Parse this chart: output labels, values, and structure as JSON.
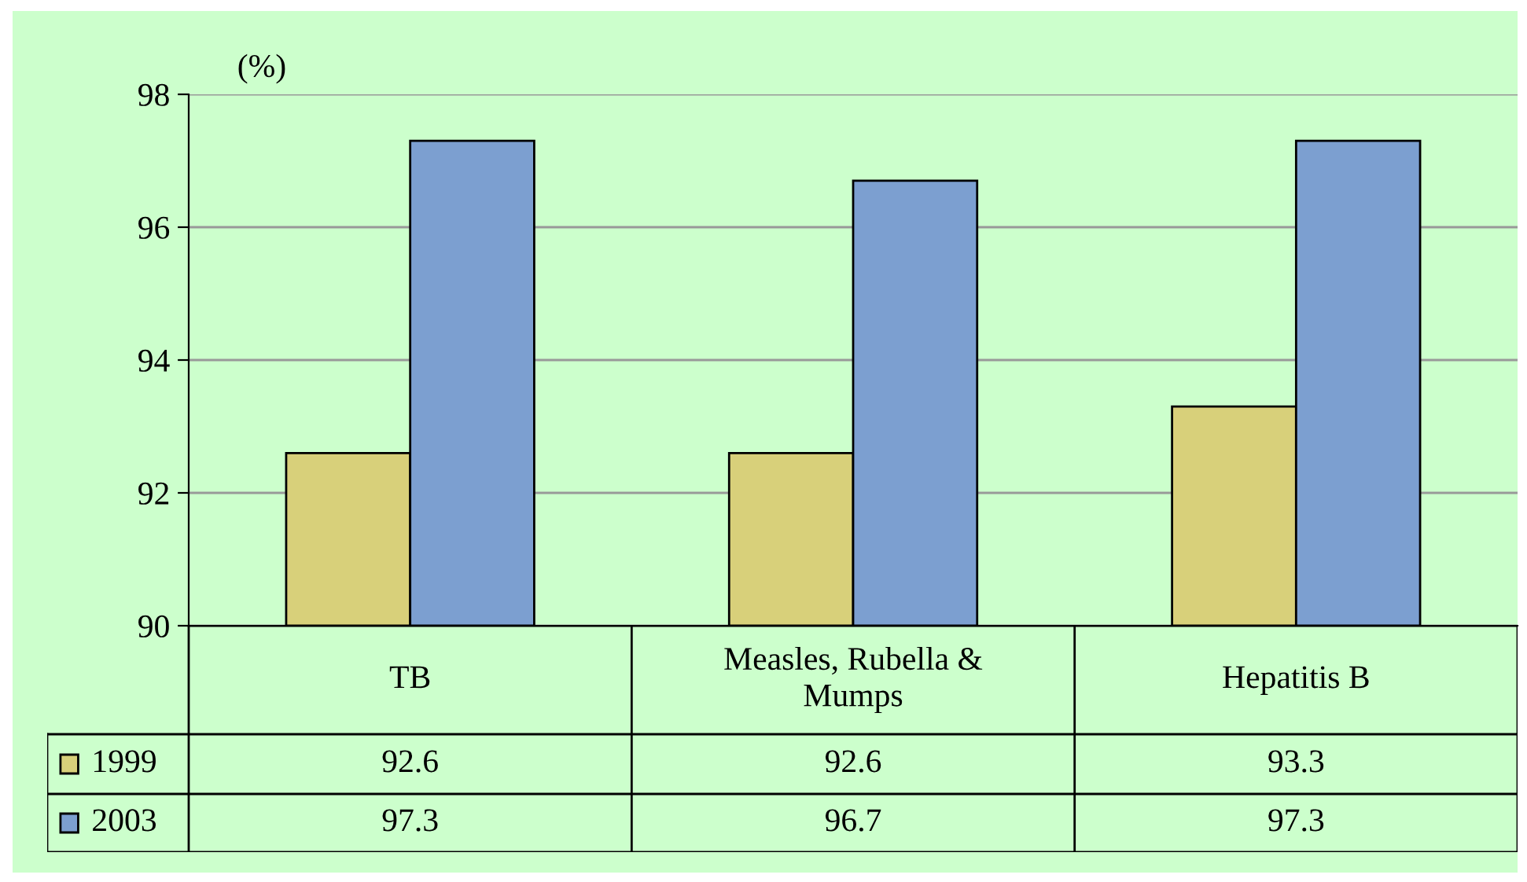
{
  "chart_data": {
    "type": "bar",
    "ylabel": "(%)",
    "categories": [
      "TB",
      "Measles, Rubella &\nMumps",
      "Hepatitis B"
    ],
    "series": [
      {
        "name": "1999",
        "color": "#d8d07a",
        "values": [
          92.6,
          92.6,
          93.3
        ]
      },
      {
        "name": "2003",
        "color": "#7c9fd0",
        "values": [
          97.3,
          96.7,
          97.3
        ]
      }
    ],
    "ylim": [
      90,
      98
    ],
    "yticks": [
      90,
      92,
      94,
      96,
      98
    ],
    "grid": "y",
    "data_labels": true,
    "legend": "bottom left"
  }
}
